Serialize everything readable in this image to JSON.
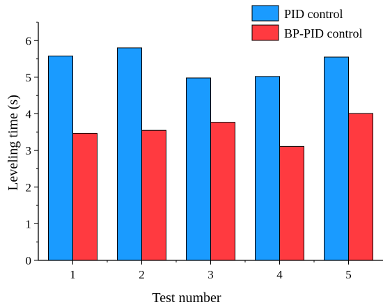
{
  "chart_data": {
    "type": "bar",
    "categories": [
      "1",
      "2",
      "3",
      "4",
      "5"
    ],
    "series": [
      {
        "name": "PID control",
        "color": "#1a9bff",
        "values": [
          5.58,
          5.8,
          4.98,
          5.02,
          5.55
        ]
      },
      {
        "name": "BP-PID control",
        "color": "#ff3a40",
        "values": [
          3.47,
          3.55,
          3.77,
          3.11,
          4.01
        ]
      }
    ],
    "title": "",
    "xlabel": "Test number",
    "ylabel": "Leveling time (s)",
    "ylim": [
      0,
      6.5
    ],
    "yticks": [
      0,
      1,
      2,
      3,
      4,
      5,
      6
    ],
    "grid": false,
    "legend_position": "top-right"
  }
}
